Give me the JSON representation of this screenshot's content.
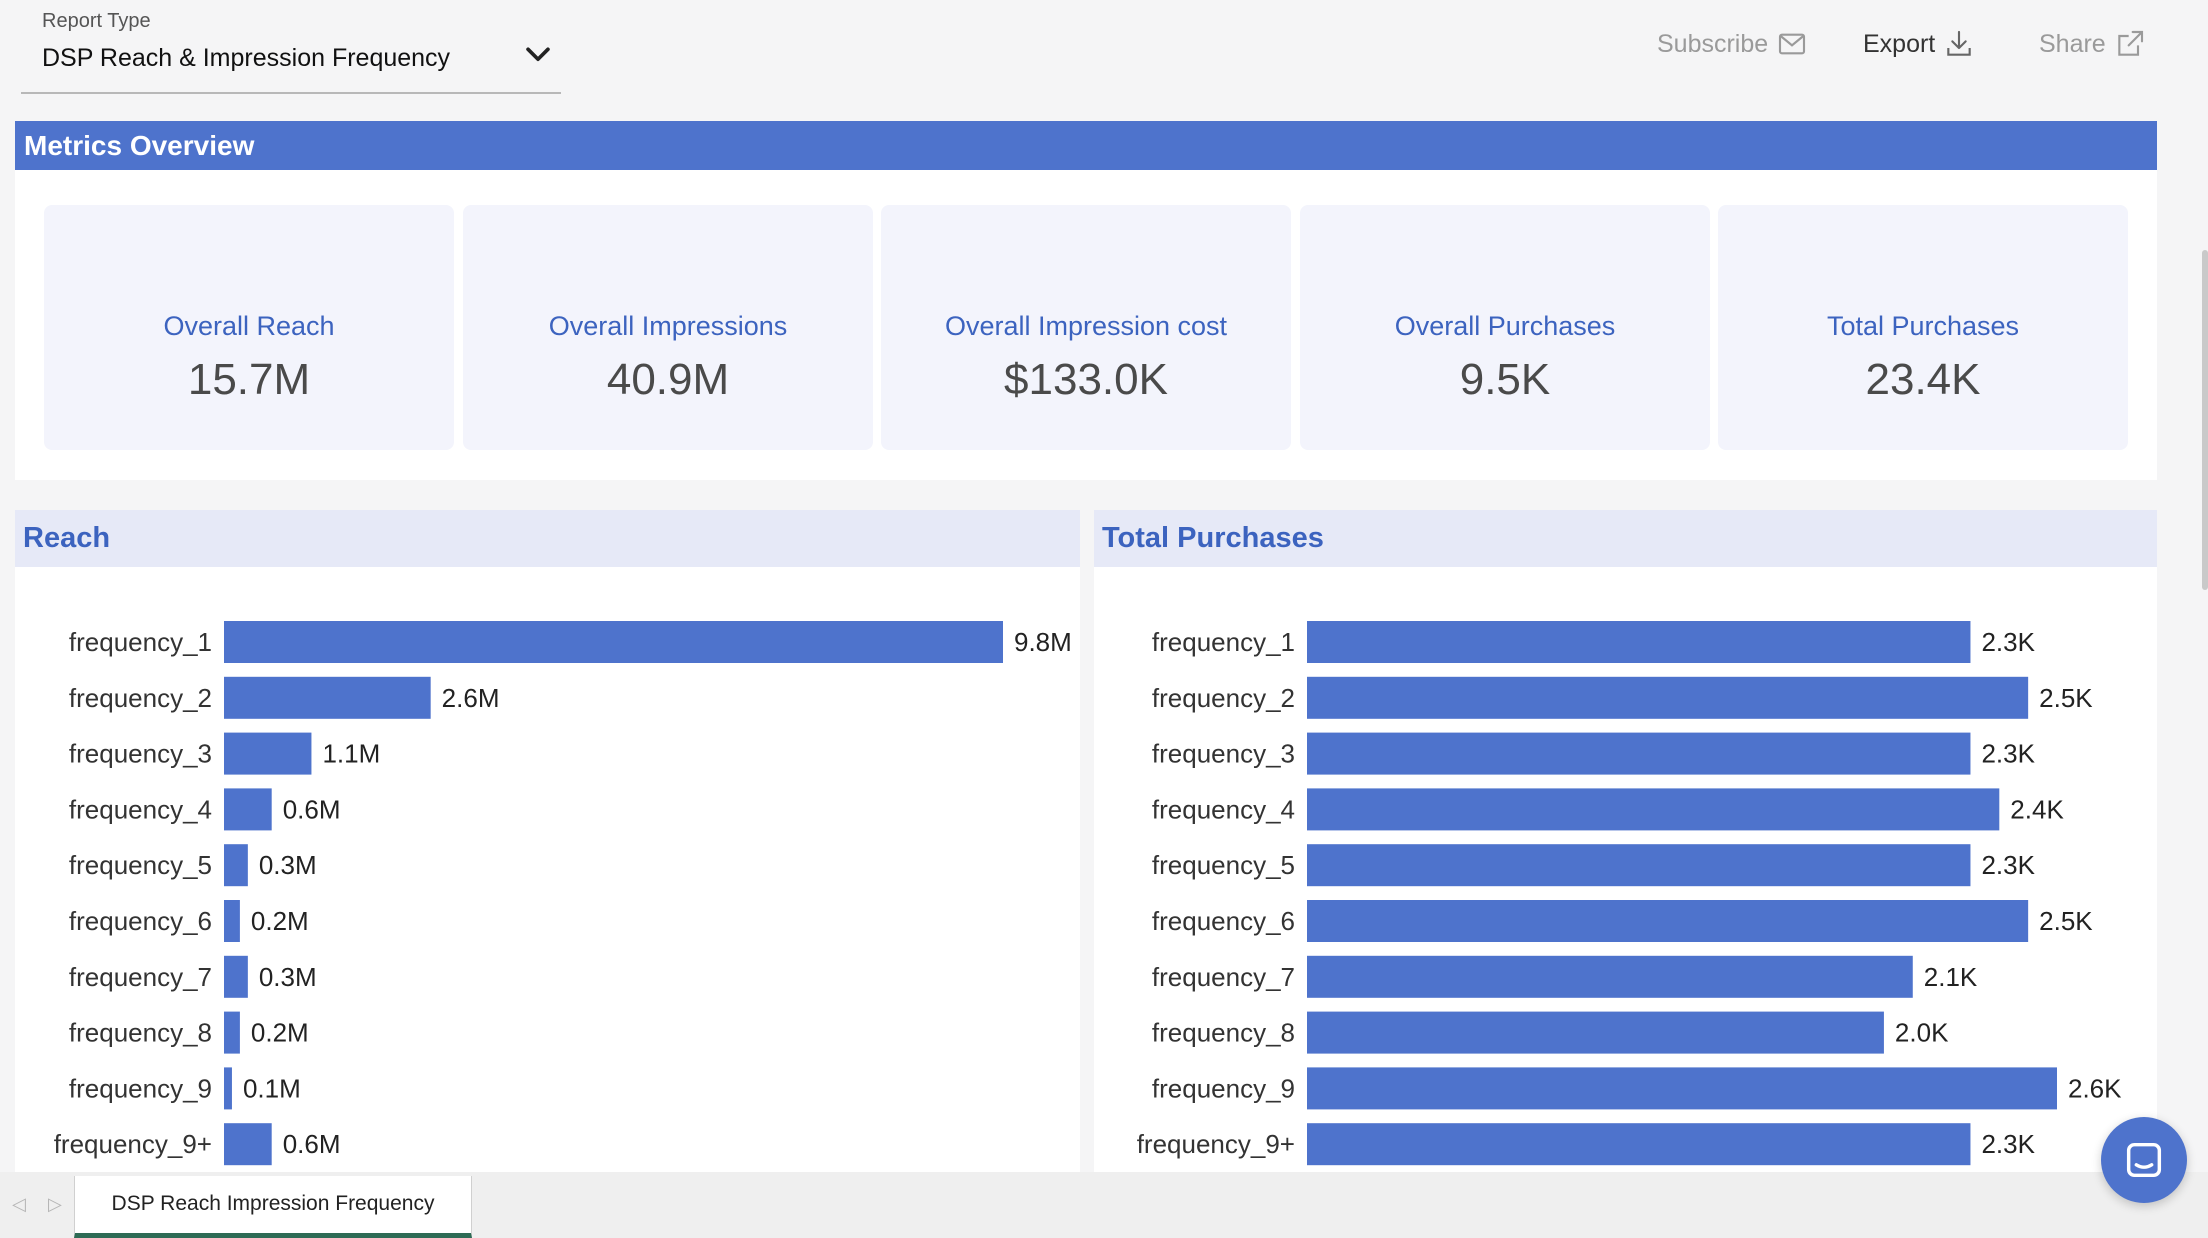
{
  "header": {
    "report_type_label": "Report Type",
    "report_type_value": "DSP Reach & Impression Frequency",
    "actions": {
      "subscribe": "Subscribe",
      "export": "Export",
      "share": "Share"
    }
  },
  "metrics": {
    "title": "Metrics Overview",
    "cards": [
      {
        "label": "Overall Reach",
        "value": "15.7M"
      },
      {
        "label": "Overall Impressions",
        "value": "40.9M"
      },
      {
        "label": "Overall Impression cost",
        "value": "$133.0K"
      },
      {
        "label": "Overall Purchases",
        "value": "9.5K"
      },
      {
        "label": "Total Purchases",
        "value": "23.4K"
      }
    ]
  },
  "chart_data": [
    {
      "type": "bar",
      "orientation": "horizontal",
      "title": "Reach",
      "categories": [
        "frequency_1",
        "frequency_2",
        "frequency_3",
        "frequency_4",
        "frequency_5",
        "frequency_6",
        "frequency_7",
        "frequency_8",
        "frequency_9",
        "frequency_9+"
      ],
      "values": [
        9.8,
        2.6,
        1.1,
        0.6,
        0.3,
        0.2,
        0.3,
        0.2,
        0.1,
        0.6
      ],
      "labels": [
        "9.8M",
        "2.6M",
        "1.1M",
        "0.6M",
        "0.3M",
        "0.2M",
        "0.3M",
        "0.2M",
        "0.1M",
        "0.6M"
      ],
      "unit": "M",
      "xlim": [
        0,
        9.8
      ],
      "color": "#4e73cc"
    },
    {
      "type": "bar",
      "orientation": "horizontal",
      "title": "Total Purchases",
      "categories": [
        "frequency_1",
        "frequency_2",
        "frequency_3",
        "frequency_4",
        "frequency_5",
        "frequency_6",
        "frequency_7",
        "frequency_8",
        "frequency_9",
        "frequency_9+"
      ],
      "values": [
        2.3,
        2.5,
        2.3,
        2.4,
        2.3,
        2.5,
        2.1,
        2.0,
        2.6,
        2.3
      ],
      "labels": [
        "2.3K",
        "2.5K",
        "2.3K",
        "2.4K",
        "2.3K",
        "2.5K",
        "2.1K",
        "2.0K",
        "2.6K",
        "2.3K"
      ],
      "unit": "K",
      "xlim": [
        0,
        2.6
      ],
      "color": "#4e73cc"
    }
  ],
  "tabs": {
    "active": "DSP Reach Impression Frequency"
  },
  "icons": {
    "dropdown": "chevron-down-icon",
    "subscribe": "envelope-icon",
    "export": "download-icon",
    "share": "external-link-icon",
    "chat": "chat-icon"
  }
}
